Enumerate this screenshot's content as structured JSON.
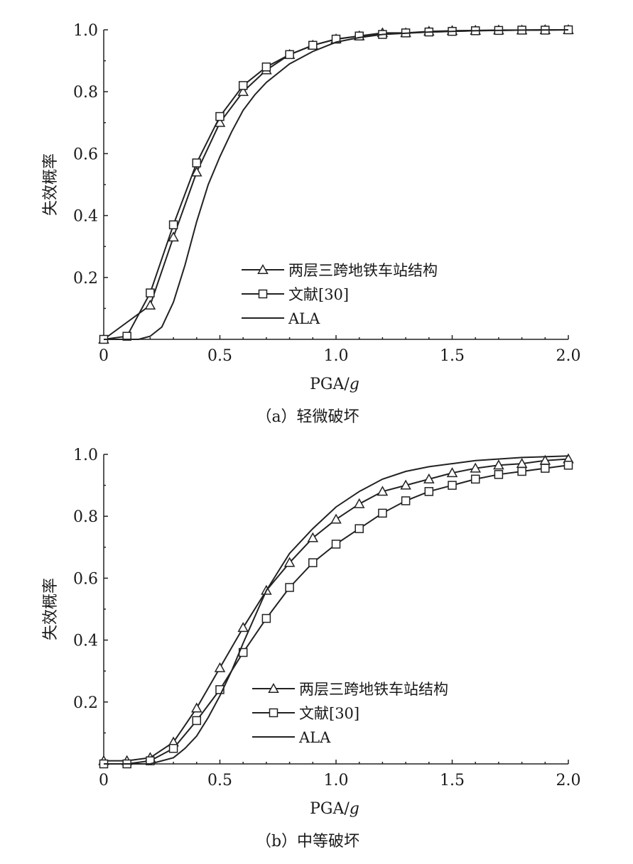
{
  "chart_data": [
    {
      "type": "line",
      "caption": "（a）轻微破坏",
      "xlabel": "PGA/",
      "xlabel_italic": "g",
      "ylabel": "失效概率",
      "xlim": [
        0,
        2.0
      ],
      "ylim": [
        0,
        1.0
      ],
      "xticks": [
        "0",
        "0.5",
        "1.0",
        "1.5",
        "2.0"
      ],
      "yticks": [
        "0.2",
        "0.4",
        "0.6",
        "0.8",
        "1.0"
      ],
      "legend_position": "lower-right",
      "series": [
        {
          "name": "两层三跨地铁车站结构",
          "marker": "triangle",
          "x": [
            0.0,
            0.2,
            0.3,
            0.4,
            0.5,
            0.6,
            0.7,
            0.8,
            0.9,
            1.0,
            1.1,
            1.2,
            1.3,
            1.4,
            1.5,
            1.6,
            1.7,
            1.8,
            1.9,
            2.0
          ],
          "y": [
            0.0,
            0.11,
            0.33,
            0.54,
            0.7,
            0.8,
            0.87,
            0.92,
            0.95,
            0.97,
            0.98,
            0.99,
            0.99,
            0.995,
            0.997,
            0.998,
            0.999,
            0.999,
            1.0,
            1.0
          ]
        },
        {
          "name": "文献[30]",
          "marker": "square",
          "x": [
            0.0,
            0.1,
            0.2,
            0.3,
            0.4,
            0.5,
            0.6,
            0.7,
            0.8,
            0.9,
            1.0,
            1.1,
            1.2,
            1.3,
            1.4,
            1.5,
            1.6,
            1.7,
            1.8,
            1.9,
            2.0
          ],
          "y": [
            0.0,
            0.01,
            0.15,
            0.37,
            0.57,
            0.72,
            0.82,
            0.88,
            0.92,
            0.95,
            0.97,
            0.98,
            0.985,
            0.99,
            0.993,
            0.995,
            0.997,
            0.998,
            0.999,
            0.999,
            1.0
          ]
        },
        {
          "name": "ALA",
          "marker": "none",
          "x": [
            0.0,
            0.15,
            0.2,
            0.25,
            0.3,
            0.35,
            0.4,
            0.45,
            0.5,
            0.55,
            0.6,
            0.65,
            0.7,
            0.8,
            0.9,
            1.0,
            1.1,
            1.2,
            1.4,
            1.6,
            1.8,
            2.0
          ],
          "y": [
            0.0,
            0.0,
            0.01,
            0.04,
            0.12,
            0.24,
            0.38,
            0.5,
            0.59,
            0.67,
            0.74,
            0.79,
            0.83,
            0.89,
            0.93,
            0.96,
            0.975,
            0.985,
            0.993,
            0.997,
            0.999,
            1.0
          ]
        }
      ]
    },
    {
      "type": "line",
      "caption": "（b）中等破坏",
      "xlabel": "PGA/",
      "xlabel_italic": "g",
      "ylabel": "失效概率",
      "xlim": [
        0,
        2.0
      ],
      "ylim": [
        0,
        1.0
      ],
      "xticks": [
        "0",
        "0.5",
        "1.0",
        "1.5",
        "2.0"
      ],
      "yticks": [
        "0.2",
        "0.4",
        "0.6",
        "0.8",
        "1.0"
      ],
      "legend_position": "lower-right",
      "series": [
        {
          "name": "两层三跨地铁车站结构",
          "marker": "triangle",
          "x": [
            0.0,
            0.1,
            0.2,
            0.3,
            0.4,
            0.5,
            0.6,
            0.7,
            0.8,
            0.9,
            1.0,
            1.1,
            1.2,
            1.3,
            1.4,
            1.5,
            1.6,
            1.7,
            1.8,
            1.9,
            2.0
          ],
          "y": [
            0.01,
            0.01,
            0.02,
            0.07,
            0.18,
            0.31,
            0.44,
            0.56,
            0.65,
            0.73,
            0.79,
            0.84,
            0.88,
            0.9,
            0.92,
            0.94,
            0.955,
            0.965,
            0.97,
            0.98,
            0.985
          ]
        },
        {
          "name": "文献[30]",
          "marker": "square",
          "x": [
            0.0,
            0.1,
            0.2,
            0.3,
            0.4,
            0.5,
            0.6,
            0.7,
            0.8,
            0.9,
            1.0,
            1.1,
            1.2,
            1.3,
            1.4,
            1.5,
            1.6,
            1.7,
            1.8,
            1.9,
            2.0
          ],
          "y": [
            0.0,
            0.0,
            0.01,
            0.05,
            0.14,
            0.24,
            0.36,
            0.47,
            0.57,
            0.65,
            0.71,
            0.76,
            0.81,
            0.85,
            0.88,
            0.9,
            0.92,
            0.935,
            0.945,
            0.955,
            0.965
          ]
        },
        {
          "name": "ALA",
          "marker": "none",
          "x": [
            0.0,
            0.2,
            0.3,
            0.35,
            0.4,
            0.45,
            0.5,
            0.55,
            0.6,
            0.7,
            0.8,
            0.9,
            1.0,
            1.1,
            1.2,
            1.3,
            1.4,
            1.5,
            1.6,
            1.8,
            2.0
          ],
          "y": [
            0.0,
            0.0,
            0.02,
            0.05,
            0.09,
            0.15,
            0.22,
            0.3,
            0.39,
            0.56,
            0.68,
            0.76,
            0.83,
            0.88,
            0.92,
            0.945,
            0.96,
            0.97,
            0.98,
            0.99,
            0.995
          ]
        }
      ]
    }
  ]
}
